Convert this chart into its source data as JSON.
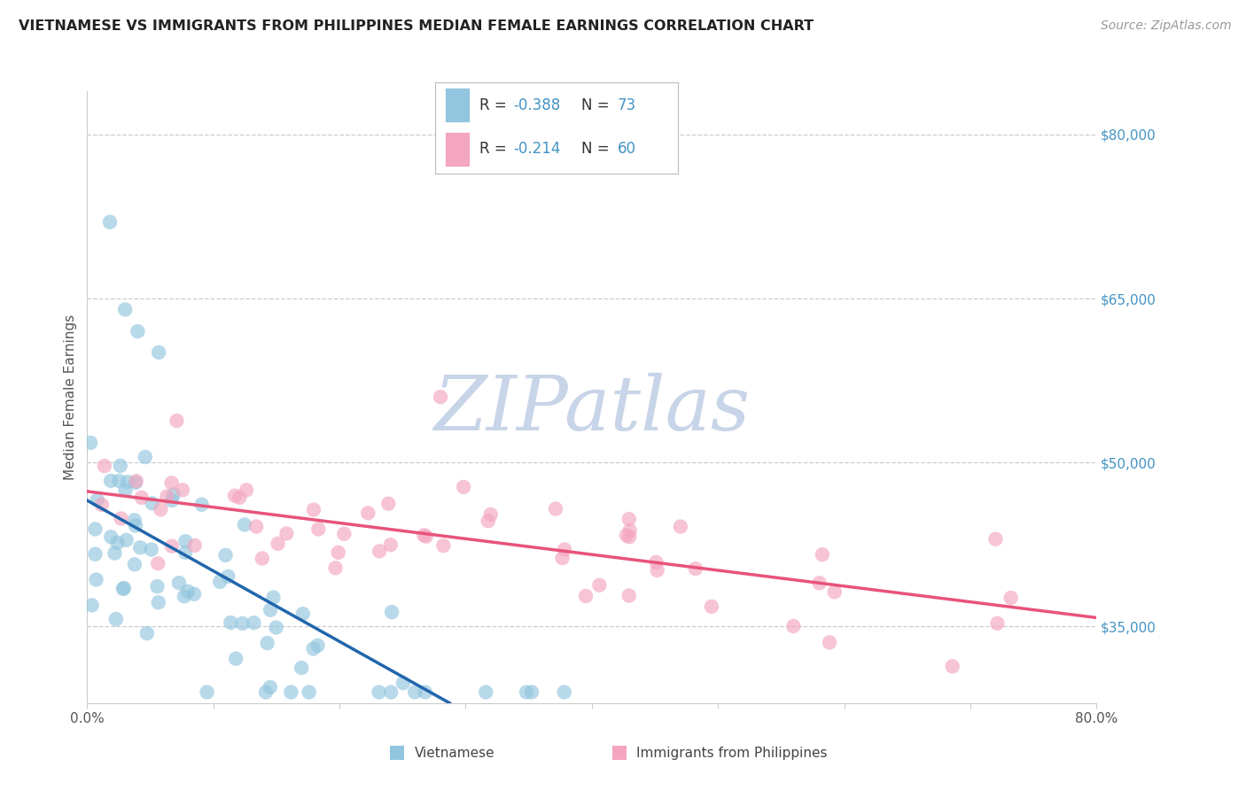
{
  "title": "VIETNAMESE VS IMMIGRANTS FROM PHILIPPINES MEDIAN FEMALE EARNINGS CORRELATION CHART",
  "source": "Source: ZipAtlas.com",
  "ylabel": "Median Female Earnings",
  "yaxis_labels": [
    "$35,000",
    "$50,000",
    "$65,000",
    "$80,000"
  ],
  "yaxis_values": [
    35000,
    50000,
    65000,
    80000
  ],
  "ylim_min": 28000,
  "ylim_max": 84000,
  "xlim_min": 0.0,
  "xlim_max": 80.0,
  "color_blue": "#92c5de",
  "color_blue_line": "#2166ac",
  "color_pink": "#f4a5bf",
  "color_pink_line": "#e8537a",
  "color_blue_text": "#4393c3",
  "color_dark_text": "#333333",
  "color_grid": "#cccccc",
  "watermark_color": "#c8d4e8",
  "label_vietnamese": "Vietnamese",
  "label_philippines": "Immigrants from Philippines",
  "legend_r1": "-0.388",
  "legend_n1": "73",
  "legend_r2": "-0.214",
  "legend_n2": "60"
}
